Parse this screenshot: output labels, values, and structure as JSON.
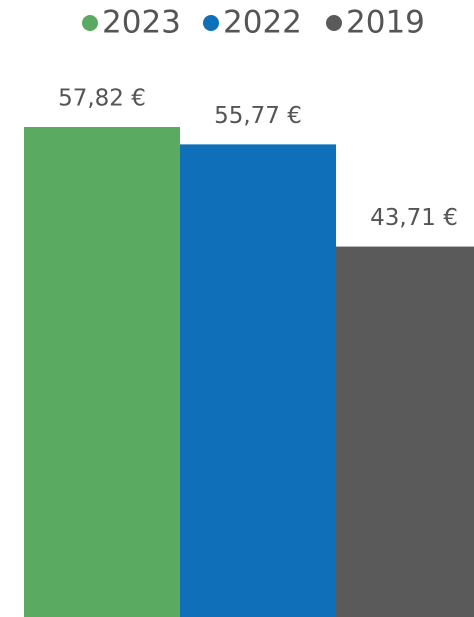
{
  "chart_data": {
    "type": "bar",
    "categories": [
      null
    ],
    "series": [
      {
        "name": "2023",
        "color": "#5aab61",
        "values": [
          57.82
        ],
        "value_labels": [
          "57,82 €"
        ]
      },
      {
        "name": "2022",
        "color": "#0f6fb8",
        "values": [
          55.77
        ],
        "value_labels": [
          "55,77 €"
        ]
      },
      {
        "name": "2019",
        "color": "#5a5a5a",
        "values": [
          43.71
        ],
        "value_labels": [
          "43,71 €"
        ]
      }
    ],
    "legend": "top"
  }
}
